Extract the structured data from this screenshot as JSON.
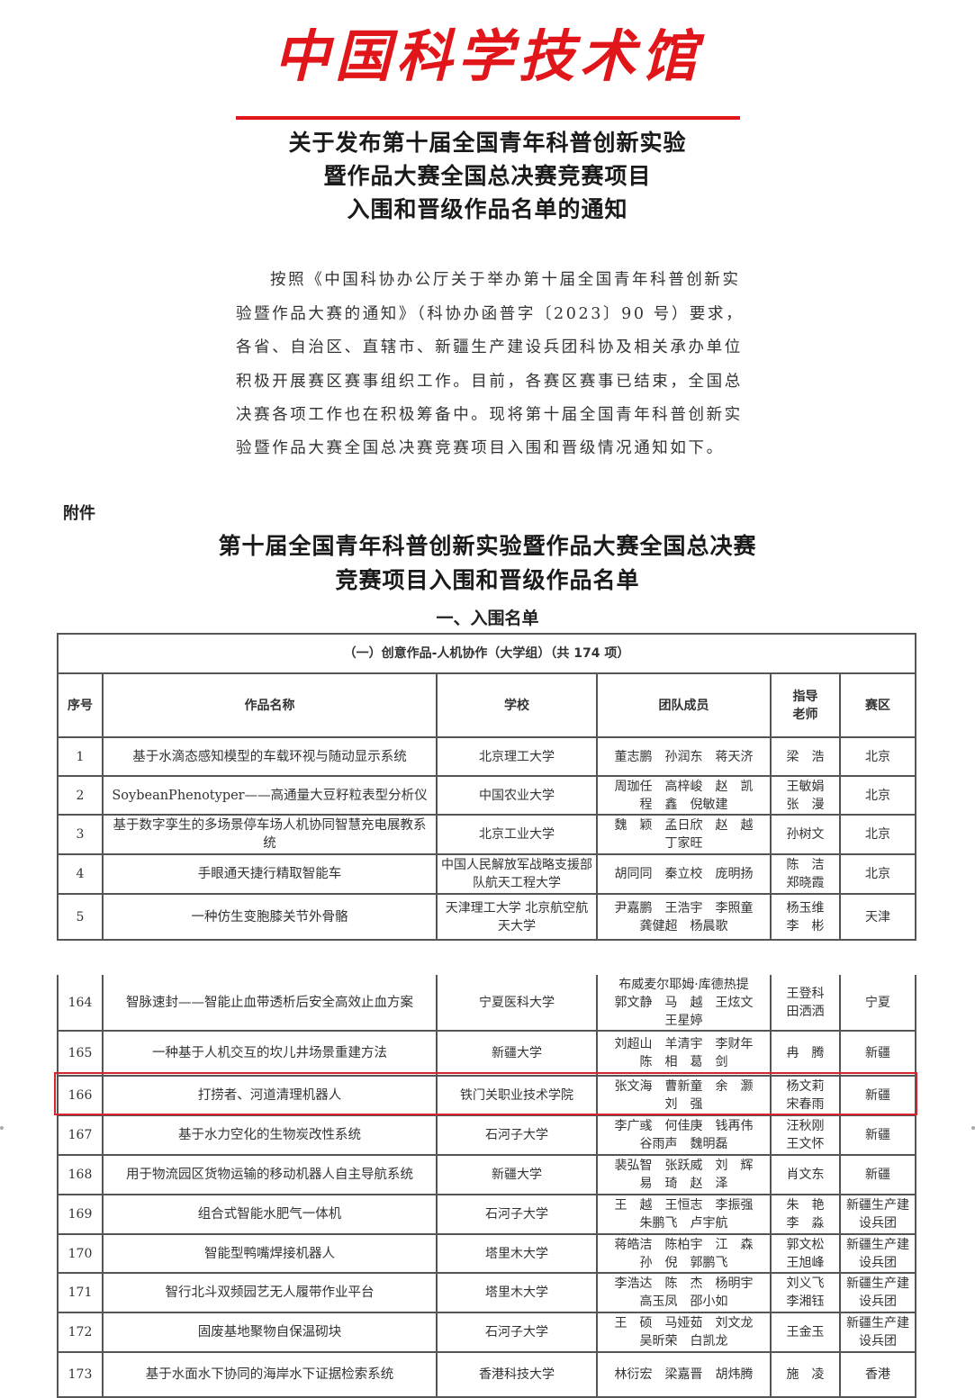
{
  "letterhead": {
    "logo_text": "中国科学技术馆",
    "brand_color": "#e0161b"
  },
  "notice_title": [
    "关于发布第十届全国青年科普创新实验",
    "暨作品大赛全国总决赛竞赛项目",
    "入围和晋级作品名单的通知"
  ],
  "body_lines": [
    "按照《中国科协办公厅关于举办第十届全国青年科普创新实",
    "验暨作品大赛的通知》（科协办函普字〔2023〕90 号）要求，",
    "各省、自治区、直辖市、新疆生产建设兵团科协及相关承办单位",
    "积极开展赛区赛事组织工作。目前，各赛区赛事已结束，全国总",
    "决赛各项工作也在积极筹备中。现将第十届全国青年科普创新实",
    "验暨作品大赛全国总决赛竞赛项目入围和晋级情况通知如下。"
  ],
  "attachment_label": "附件",
  "list_title": [
    "第十届全国青年科普创新实验暨作品大赛全国总决赛",
    "竞赛项目入围和晋级作品名单"
  ],
  "section_title": "一、入围名单",
  "table": {
    "caption": "（一）创意作品-人机协作（大学组）（共 174 项）",
    "headers": [
      "序号",
      "作品名称",
      "学校",
      "团队成员",
      "指导老师",
      "赛区"
    ],
    "highlight_color": "#d9242b",
    "rows_top": [
      {
        "no": "1",
        "name": "基于水滴态感知模型的车载环视与随动显示系统",
        "school": "北京理工大学",
        "team": [
          "董志鹏　孙润东　蒋天济"
        ],
        "advisor": [
          "梁　浩"
        ],
        "region": "北京"
      },
      {
        "no": "2",
        "name": "SoybeanPhenotyper——高通量大豆籽粒表型分析仪",
        "school": "中国农业大学",
        "team": [
          "周珈任　高梓峻　赵　凯",
          "程　鑫　倪敏建"
        ],
        "advisor": [
          "王敏娟",
          "张　漫"
        ],
        "region": "北京"
      },
      {
        "no": "3",
        "name": "基于数字孪生的多场景停车场人机协同智慧充电展教系统",
        "school": "北京工业大学",
        "team": [
          "魏　颖　孟日欣　赵　越",
          "丁家旺"
        ],
        "advisor": [
          "孙树文"
        ],
        "region": "北京"
      },
      {
        "no": "4",
        "name": "手眼通天捷行精取智能车",
        "school": "中国人民解放军战略支援部队航天工程大学",
        "team": [
          "胡同同　秦立校　庞明扬"
        ],
        "advisor": [
          "陈　洁",
          "郑晓霞"
        ],
        "region": "北京"
      },
      {
        "no": "5",
        "name": "一种仿生变胞膝关节外骨骼",
        "school": "天津理工大学 北京航空航天大学",
        "team": [
          "尹嘉鹏　王浩宇　李照童",
          "龚健超　杨晨歌"
        ],
        "advisor": [
          "杨玉维",
          "李　彬"
        ],
        "region": "天津"
      }
    ],
    "rows_bottom": [
      {
        "no": "164",
        "name": "智脉速封——智能止血带透析后安全高效止血方案",
        "school": "宁夏医科大学",
        "team": [
          "布威麦尔耶姆·库德热提",
          "郭文静　马　越　王炫文",
          "王星婷"
        ],
        "advisor": [
          "王登科",
          "田洒洒"
        ],
        "region": "宁夏"
      },
      {
        "no": "165",
        "name": "一种基于人机交互的坎儿井场景重建方法",
        "school": "新疆大学",
        "team": [
          "刘超山　羊清宇　李财年",
          "陈　相　葛　剑"
        ],
        "advisor": [
          "冉　腾"
        ],
        "region": "新疆"
      },
      {
        "no": "166",
        "name": "打捞者、河道清理机器人",
        "school": "铁门关职业技术学院",
        "team": [
          "张文海　曹新童　余　灏",
          "刘　强"
        ],
        "advisor": [
          "杨文莉",
          "宋春雨"
        ],
        "region": "新疆"
      },
      {
        "no": "167",
        "name": "基于水力空化的生物炭改性系统",
        "school": "石河子大学",
        "team": [
          "李广彧　何佳庚　钱再伟",
          "谷雨声　魏明磊"
        ],
        "advisor": [
          "汪秋刚",
          "王文怀"
        ],
        "region": "新疆"
      },
      {
        "no": "168",
        "name": "用于物流园区货物运输的移动机器人自主导航系统",
        "school": "新疆大学",
        "team": [
          "裴弘智　张跃威　刘　辉",
          "易　琦　赵　泽"
        ],
        "advisor": [
          "肖文东"
        ],
        "region": "新疆"
      },
      {
        "no": "169",
        "name": "组合式智能水肥气一体机",
        "school": "石河子大学",
        "team": [
          "王　越　王恒志　李振强",
          "朱鹏飞　卢宇航"
        ],
        "advisor": [
          "朱　艳",
          "李　淼"
        ],
        "region": "新疆生产建设兵团"
      },
      {
        "no": "170",
        "name": "智能型鸭嘴焊接机器人",
        "school": "塔里木大学",
        "team": [
          "蒋皓洁　陈柏宇　江　森",
          "孙　倪　郭鹏飞"
        ],
        "advisor": [
          "郭文松",
          "王旭峰"
        ],
        "region": "新疆生产建设兵团"
      },
      {
        "no": "171",
        "name": "智行北斗双频园艺无人履带作业平台",
        "school": "塔里木大学",
        "team": [
          "李浩达　陈　杰　杨明宇",
          "高玉凤　邵小如"
        ],
        "advisor": [
          "刘义飞",
          "李湘钰"
        ],
        "region": "新疆生产建设兵团"
      },
      {
        "no": "172",
        "name": "固废基地聚物自保温砌块",
        "school": "石河子大学",
        "team": [
          "王　硕　马娅茹　刘文龙",
          "吴昕荣　白凯龙"
        ],
        "advisor": [
          "王金玉"
        ],
        "region": "新疆生产建设兵团"
      },
      {
        "no": "173",
        "name": "基于水面水下协同的海岸水下证据检索系统",
        "school": "香港科技大学",
        "team": [
          "林衍宏　梁嘉晋　胡炜腾"
        ],
        "advisor": [
          "施　凌"
        ],
        "region": "香港"
      }
    ]
  }
}
